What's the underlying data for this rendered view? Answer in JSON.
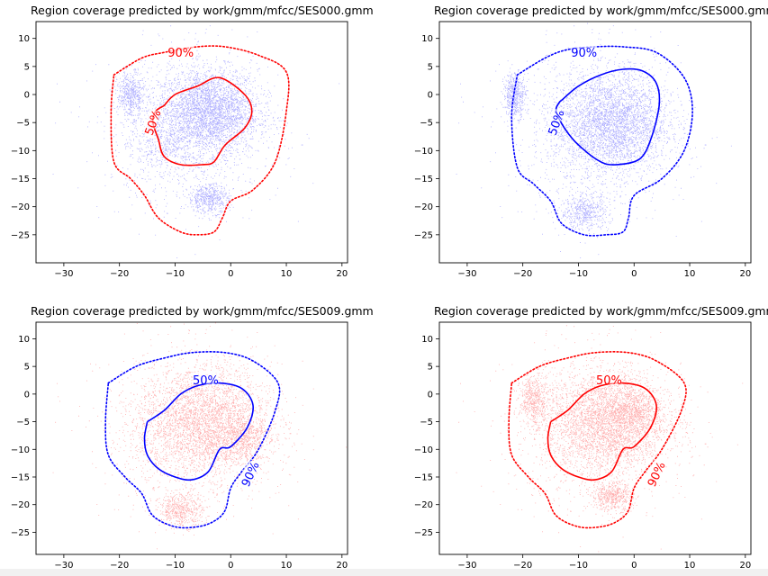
{
  "chart_data": [
    {
      "type": "scatter",
      "title": "Region coverage predicted by work/gmm/mfcc/SES000.gmm",
      "xlabel": "",
      "ylabel": "",
      "xlim": [
        -35,
        21
      ],
      "ylim": [
        -30,
        13
      ],
      "xticks": [
        -30,
        -20,
        -10,
        0,
        10,
        20
      ],
      "yticks": [
        10,
        5,
        0,
        -5,
        -10,
        -15,
        -20,
        -25
      ],
      "point_color": "#0000ff",
      "contour_color": "#ff0000",
      "clusters": [
        [
          -4,
          -3,
          4.5,
          3.8
        ],
        [
          -18,
          0,
          1.2,
          2
        ],
        [
          -4,
          -18.5,
          1.8,
          1.3
        ],
        [
          -12,
          -8,
          4,
          3.5
        ]
      ],
      "contours": [
        {
          "label": "50%",
          "style": "solid",
          "x": [
            -12,
            -10,
            -6,
            -2,
            2.5,
            3.8,
            2.5,
            -1,
            -3,
            -5,
            -9,
            -12,
            -13,
            -14,
            -13.5,
            -12
          ],
          "y": [
            -2,
            0,
            1.5,
            3,
            0,
            -3,
            -6,
            -9,
            -12,
            -12.5,
            -12.5,
            -11,
            -8,
            -5,
            -3,
            -2
          ]
        },
        {
          "label": "90%",
          "style": "dotted",
          "x": [
            -21,
            -16,
            -12,
            -6,
            -1,
            5,
            10,
            10,
            8,
            4,
            0,
            -1.5,
            -3,
            -6,
            -9,
            -13,
            -15.5,
            -18,
            -21,
            -21.5,
            -21
          ],
          "y": [
            3.5,
            6.5,
            7.5,
            8.5,
            8.5,
            7,
            4,
            -3,
            -12,
            -17,
            -19,
            -22,
            -24.5,
            -25,
            -24.5,
            -22,
            -18,
            -15,
            -12,
            -3,
            3.5
          ]
        }
      ],
      "contour_labels": [
        {
          "text": "90%",
          "x": -9,
          "y": 7.5,
          "rotation": 0
        },
        {
          "text": "50%",
          "x": -14,
          "y": -5,
          "rotation": -70
        }
      ]
    },
    {
      "type": "scatter",
      "title": "Region coverage predicted by work/gmm/mfcc/SES000.gmm",
      "xlabel": "",
      "ylabel": "",
      "xlim": [
        -35,
        21
      ],
      "ylim": [
        -30,
        13
      ],
      "xticks": [
        -30,
        -20,
        -10,
        0,
        10,
        20
      ],
      "yticks": [
        10,
        5,
        0,
        -5,
        -10,
        -15,
        -20,
        -25
      ],
      "point_color": "#0000ff",
      "contour_color": "#0000ff",
      "clusters": [
        [
          -4,
          -5,
          5,
          4.5
        ],
        [
          -21.5,
          0,
          1,
          2
        ],
        [
          -9,
          -21,
          2.2,
          1.6
        ]
      ],
      "contours": [
        {
          "label": "50%",
          "style": "solid",
          "x": [
            -13,
            -10,
            -6,
            -2,
            1.5,
            4,
            4.5,
            3,
            1,
            -3,
            -6,
            -10,
            -12.5,
            -14,
            -13.5,
            -13
          ],
          "y": [
            -1,
            1.5,
            3.5,
            4.5,
            4.2,
            2,
            -2,
            -8,
            -11.5,
            -12.5,
            -12,
            -9,
            -6,
            -3,
            -1.5,
            -1
          ]
        },
        {
          "label": "90%",
          "style": "dotted",
          "x": [
            -21,
            -16,
            -12,
            -7,
            -2,
            4,
            9,
            10.5,
            9,
            5,
            0,
            -1,
            -2,
            -5,
            -9,
            -13,
            -15,
            -18,
            -21,
            -22,
            -21
          ],
          "y": [
            3.5,
            6.5,
            8,
            8.5,
            8.5,
            7.5,
            3,
            -3,
            -10,
            -15,
            -18,
            -22,
            -24.5,
            -25,
            -25,
            -23,
            -19,
            -16,
            -13,
            -4,
            3.5
          ]
        }
      ],
      "contour_labels": [
        {
          "text": "90%",
          "x": -9,
          "y": 7.5,
          "rotation": 0
        },
        {
          "text": "50%",
          "x": -14,
          "y": -5,
          "rotation": -70
        }
      ]
    },
    {
      "type": "scatter",
      "title": "Region coverage predicted by work/gmm/mfcc/SES009.gmm",
      "xlabel": "",
      "ylabel": "",
      "xlim": [
        -35,
        21
      ],
      "ylim": [
        -29,
        13
      ],
      "xticks": [
        -30,
        -20,
        -10,
        0,
        10,
        20
      ],
      "yticks": [
        10,
        5,
        0,
        -5,
        -10,
        -15,
        -20,
        -25
      ],
      "point_color": "#ff0000",
      "contour_color": "#0000ff",
      "clusters": [
        [
          -5,
          -5,
          6,
          5
        ],
        [
          -9,
          -21,
          2,
          1.5
        ],
        [
          2,
          -8,
          2.5,
          2
        ]
      ],
      "contours": [
        {
          "label": "50%",
          "style": "solid",
          "x": [
            -15,
            -12,
            -9,
            -6,
            -2,
            2,
            4,
            3,
            0,
            -2,
            -4,
            -7,
            -10,
            -13,
            -15,
            -15.5,
            -15
          ],
          "y": [
            -5,
            -3,
            0,
            1.5,
            2,
            1,
            -2,
            -6,
            -9.5,
            -10,
            -14,
            -15.5,
            -15,
            -13.5,
            -11,
            -8,
            -5
          ]
        },
        {
          "label": "90%",
          "style": "dotted",
          "x": [
            -22,
            -17,
            -12,
            -7,
            -1,
            4,
            8.5,
            8,
            5,
            2,
            0,
            -1,
            -3,
            -6,
            -10,
            -14,
            -16,
            -19,
            -22,
            -22.5,
            -22
          ],
          "y": [
            2,
            5,
            6.5,
            7.5,
            7.5,
            6,
            2,
            -3,
            -10,
            -14,
            -17,
            -21,
            -23,
            -24,
            -24,
            -22,
            -18,
            -15,
            -11,
            -5,
            2
          ]
        }
      ],
      "contour_labels": [
        {
          "text": "50%",
          "x": -4.5,
          "y": 2.5,
          "rotation": 0
        },
        {
          "text": "90%",
          "x": 3.5,
          "y": -14.5,
          "rotation": -65
        }
      ]
    },
    {
      "type": "scatter",
      "title": "Region coverage predicted by work/gmm/mfcc/SES009.gmm",
      "xlabel": "",
      "ylabel": "",
      "xlim": [
        -35,
        21
      ],
      "ylim": [
        -29,
        13
      ],
      "xticks": [
        -30,
        -20,
        -10,
        0,
        10,
        20
      ],
      "yticks": [
        10,
        5,
        0,
        -5,
        -10,
        -15,
        -20,
        -25
      ],
      "point_color": "#ff0000",
      "contour_color": "#ff0000",
      "clusters": [
        [
          -5,
          -5,
          5.5,
          4.5
        ],
        [
          -18,
          -1,
          1.3,
          2.2
        ],
        [
          -4,
          -18.5,
          1.8,
          1.3
        ],
        [
          0,
          -3,
          2.5,
          2
        ]
      ],
      "contours": [
        {
          "label": "50%",
          "style": "solid",
          "x": [
            -15,
            -12,
            -9,
            -6,
            -2,
            2,
            4,
            3,
            0,
            -2,
            -4,
            -7,
            -10,
            -13,
            -15,
            -15.5,
            -15
          ],
          "y": [
            -5,
            -3,
            0,
            1.5,
            2,
            1,
            -2,
            -6,
            -9.5,
            -10,
            -14,
            -15.5,
            -15,
            -13.5,
            -11,
            -8,
            -5
          ]
        },
        {
          "label": "90%",
          "style": "dotted",
          "x": [
            -22,
            -17,
            -12,
            -7,
            -1,
            4,
            9,
            8.5,
            5,
            2,
            0,
            -1,
            -3,
            -6,
            -10,
            -14,
            -16,
            -19,
            -22,
            -22.5,
            -22
          ],
          "y": [
            2,
            5,
            6.5,
            7.5,
            7.5,
            6,
            2,
            -3,
            -10,
            -14,
            -17,
            -21,
            -23,
            -24,
            -24,
            -22,
            -18,
            -15,
            -11,
            -5,
            2
          ]
        }
      ],
      "contour_labels": [
        {
          "text": "50%",
          "x": -4.5,
          "y": 2.5,
          "rotation": 0
        },
        {
          "text": "90%",
          "x": 4,
          "y": -14.5,
          "rotation": -65
        }
      ]
    }
  ]
}
